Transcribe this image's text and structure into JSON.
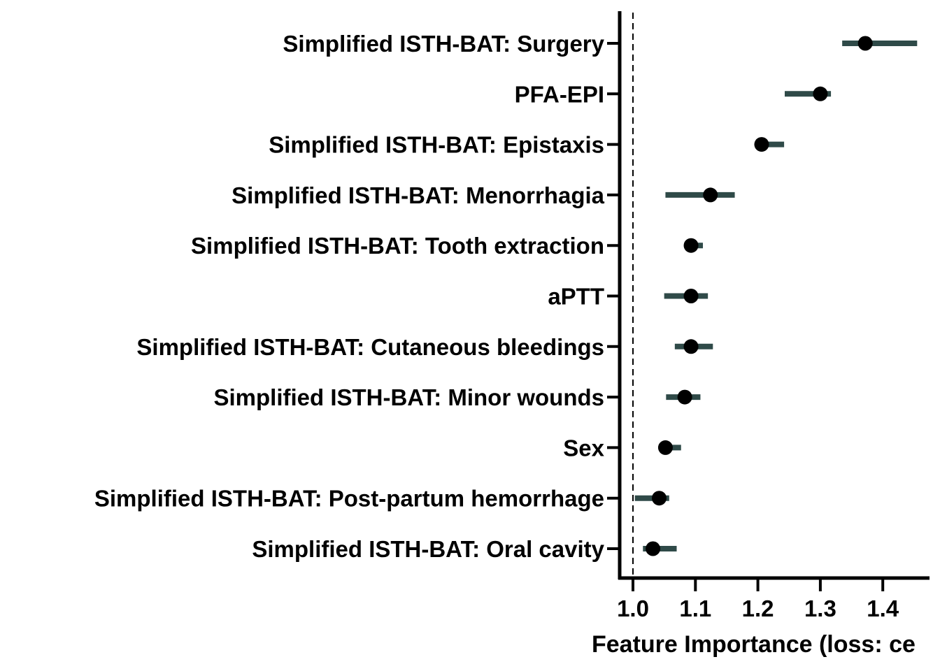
{
  "chart_data": {
    "type": "scatter",
    "orientation": "horizontal",
    "title": "",
    "xlabel": "Feature Importance (loss: ce",
    "ylabel": "",
    "xlim": [
      0.98,
      1.47
    ],
    "xticks": [
      1.0,
      1.1,
      1.2,
      1.3,
      1.4
    ],
    "xtick_labels": [
      "1.0",
      "1.1",
      "1.2",
      "1.3",
      "1.4"
    ],
    "reference_line": {
      "x": 1.0,
      "style": "dashed"
    },
    "grid": false,
    "legend": "none",
    "colors": {
      "point": "#000000",
      "interval": "#2f4a48",
      "axis": "#000000"
    },
    "features": [
      {
        "label": "Simplified ISTH-BAT: Surgery",
        "value": 1.372,
        "low": 1.335,
        "high": 1.455
      },
      {
        "label": "PFA-EPI",
        "value": 1.3,
        "low": 1.243,
        "high": 1.317
      },
      {
        "label": "Simplified ISTH-BAT: Epistaxis",
        "value": 1.206,
        "low": 1.205,
        "high": 1.242
      },
      {
        "label": "Simplified ISTH-BAT: Menorrhagia",
        "value": 1.124,
        "low": 1.052,
        "high": 1.163
      },
      {
        "label": "Simplified ISTH-BAT: Tooth extraction",
        "value": 1.093,
        "low": 1.083,
        "high": 1.112
      },
      {
        "label": "aPTT",
        "value": 1.093,
        "low": 1.05,
        "high": 1.12
      },
      {
        "label": "Simplified ISTH-BAT: Cutaneous bleedings",
        "value": 1.093,
        "low": 1.067,
        "high": 1.128
      },
      {
        "label": "Simplified ISTH-BAT: Minor wounds",
        "value": 1.083,
        "low": 1.053,
        "high": 1.108
      },
      {
        "label": "Sex",
        "value": 1.052,
        "low": 1.045,
        "high": 1.077
      },
      {
        "label": "Simplified ISTH-BAT: Post-partum hemorrhage",
        "value": 1.042,
        "low": 1.003,
        "high": 1.058
      },
      {
        "label": "Simplified ISTH-BAT: Oral cavity",
        "value": 1.032,
        "low": 1.016,
        "high": 1.07
      }
    ]
  }
}
